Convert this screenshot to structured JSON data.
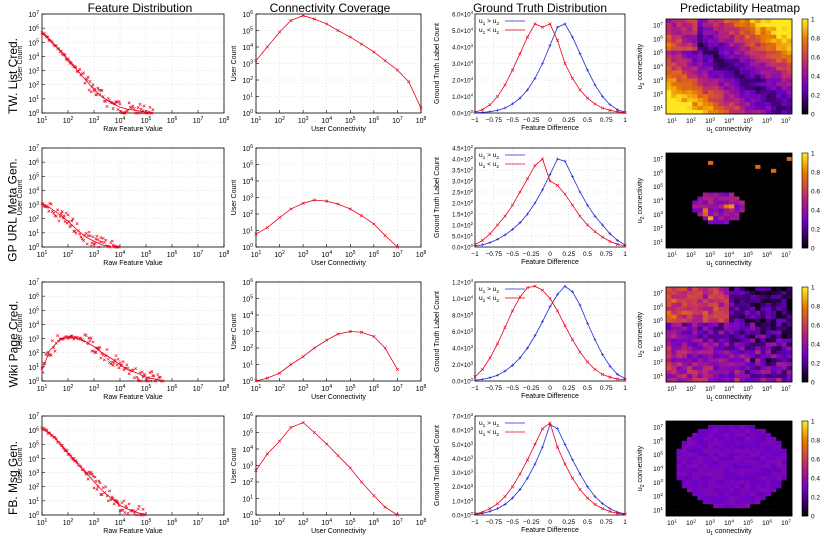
{
  "column_titles": [
    "Feature Distribution",
    "Connectivity Coverage",
    "Ground Truth Distribution",
    "Predictability Heatmap"
  ],
  "row_titles": [
    "TW. List Cred.",
    "GP URL Meta Gen.",
    "Wiki Page Cred.",
    "FB. Msg Gen."
  ],
  "colors": {
    "series": "#e8001c",
    "series_alt": "#1c2bd8",
    "grid": "#cccccc"
  },
  "colorbar": {
    "ticks": [
      "0",
      "0.2",
      "0.4",
      "0.6",
      "0.8",
      "1"
    ]
  },
  "chart_data": [
    {
      "panel": "feature-distribution-1",
      "type": "scatter",
      "xscale": "log",
      "yscale": "log",
      "xlabel": "Raw Feature Value",
      "ylabel": "User Count",
      "xlim": [
        10,
        100000000
      ],
      "ylim": [
        1,
        100000000
      ],
      "xtick_labels": [
        "10^1",
        "10^2",
        "10^3",
        "10^4",
        "10^5",
        "10^6",
        "10^7",
        "10^8"
      ],
      "ytick_labels": [
        "10^0",
        "10^1",
        "10^2",
        "10^3",
        "10^4",
        "10^5",
        "10^6",
        "10^7"
      ],
      "x": [
        10,
        20,
        50,
        100,
        200,
        500,
        1000,
        2000,
        5000,
        10000,
        20000,
        50000,
        100000,
        200000
      ],
      "y": [
        3000000,
        800000,
        100000,
        20000,
        4000,
        400,
        80,
        20,
        6,
        3,
        2,
        1.5,
        1.2,
        1
      ]
    },
    {
      "panel": "connectivity-coverage-1",
      "type": "line",
      "xscale": "log",
      "yscale": "log",
      "xlabel": "User Connectivity",
      "ylabel": "User Count",
      "xlim": [
        10,
        100000000
      ],
      "ylim": [
        1,
        1000000
      ],
      "xtick_labels": [
        "10^1",
        "10^2",
        "10^3",
        "10^4",
        "10^5",
        "10^6",
        "10^7",
        "10^8"
      ],
      "ytick_labels": [
        "10^0",
        "10^1",
        "10^2",
        "10^3",
        "10^4",
        "10^5",
        "10^6"
      ],
      "x": [
        10,
        30,
        100,
        300,
        1000,
        3000,
        10000,
        30000,
        100000,
        300000,
        1000000,
        3000000,
        10000000,
        30000000,
        100000000
      ],
      "y": [
        1500,
        10000,
        80000,
        400000,
        800000,
        500000,
        250000,
        100000,
        40000,
        15000,
        5000,
        1500,
        400,
        80,
        2
      ]
    },
    {
      "panel": "ground-truth-distribution-1",
      "type": "line",
      "xlabel": "Feature Difference",
      "ylabel": "Ground Truth Label Count",
      "xlim": [
        -1,
        1
      ],
      "ylim": [
        0,
        60000
      ],
      "xtick_labels": [
        "-1",
        "-0.75",
        "-0.5",
        "-0.25",
        "0",
        "0.25",
        "0.5",
        "0.75",
        "1"
      ],
      "ytick_labels": [
        "0.0x10^0",
        "1.0x10^4",
        "2.0x10^4",
        "3.0x10^4",
        "4.0x10^4",
        "5.0x10^4",
        "6.0x10^4"
      ],
      "legend": [
        "u1 > u2",
        "u1 < u2"
      ],
      "x": [
        -1,
        -0.9,
        -0.8,
        -0.7,
        -0.6,
        -0.5,
        -0.4,
        -0.3,
        -0.2,
        -0.1,
        0,
        0.1,
        0.2,
        0.3,
        0.4,
        0.5,
        0.6,
        0.7,
        0.8,
        0.9,
        1
      ],
      "series": [
        {
          "name": "u1 > u2",
          "values": [
            200,
            400,
            800,
            1600,
            3000,
            5500,
            9000,
            14000,
            21000,
            30000,
            41000,
            52000,
            54000,
            46000,
            36000,
            26000,
            17000,
            10000,
            5000,
            2000,
            500
          ]
        },
        {
          "name": "u1 < u2",
          "values": [
            500,
            2000,
            5000,
            10000,
            17000,
            26000,
            36000,
            46000,
            54000,
            52000,
            54000,
            44000,
            30000,
            21000,
            14000,
            9000,
            5500,
            3000,
            1600,
            800,
            200
          ]
        }
      ]
    },
    {
      "panel": "predictability-heatmap-1",
      "type": "heatmap",
      "xlabel": "u1 connectivity",
      "ylabel": "u2 connectivity",
      "xtick_labels": [
        "10^1",
        "10^2",
        "10^3",
        "10^4",
        "10^5",
        "10^6",
        "10^7"
      ],
      "ytick_labels": [
        "10^1",
        "10^2",
        "10^3",
        "10^4",
        "10^5",
        "10^6",
        "10^7"
      ],
      "pattern": "diagonal"
    },
    {
      "panel": "feature-distribution-2",
      "type": "scatter",
      "xscale": "log",
      "yscale": "log",
      "xlabel": "Raw Feature Value",
      "ylabel": "User Count",
      "xlim": [
        10,
        100000000
      ],
      "ylim": [
        1,
        100000000
      ],
      "xtick_labels": [
        "10^1",
        "10^2",
        "10^3",
        "10^4",
        "10^5",
        "10^6",
        "10^7",
        "10^8"
      ],
      "ytick_labels": [
        "10^0",
        "10^1",
        "10^2",
        "10^3",
        "10^4",
        "10^5",
        "10^6",
        "10^7"
      ],
      "x": [
        10,
        20,
        50,
        100,
        200,
        500,
        1000,
        2000,
        5000,
        10000
      ],
      "y": [
        3000,
        1500,
        400,
        120,
        30,
        6,
        3,
        1.5,
        1,
        1
      ]
    },
    {
      "panel": "connectivity-coverage-2",
      "type": "line",
      "xscale": "log",
      "yscale": "log",
      "xlabel": "User Connectivity",
      "ylabel": "User Count",
      "xlim": [
        10,
        100000000
      ],
      "ylim": [
        1,
        1000000
      ],
      "xtick_labels": [
        "10^1",
        "10^2",
        "10^3",
        "10^4",
        "10^5",
        "10^6",
        "10^7",
        "10^8"
      ],
      "ytick_labels": [
        "10^0",
        "10^1",
        "10^2",
        "10^3",
        "10^4",
        "10^5",
        "10^6"
      ],
      "x": [
        10,
        30,
        100,
        300,
        1000,
        3000,
        10000,
        30000,
        100000,
        300000,
        1000000,
        3000000,
        10000000
      ],
      "y": [
        6,
        15,
        60,
        200,
        450,
        700,
        600,
        400,
        200,
        80,
        25,
        5,
        1
      ]
    },
    {
      "panel": "ground-truth-distribution-2",
      "type": "line",
      "xlabel": "Feature Difference",
      "ylabel": "Ground Truth Label Count",
      "xlim": [
        -1,
        1
      ],
      "ylim": [
        0,
        450
      ],
      "xtick_labels": [
        "-1",
        "-0.75",
        "-0.5",
        "-0.25",
        "0",
        "0.25",
        "0.5",
        "0.75",
        "1"
      ],
      "ytick_labels": [
        "0.0x10^0",
        "5.0x10^1",
        "1.0x10^2",
        "1.5x10^2",
        "2.0x10^2",
        "2.5x10^2",
        "3.0x10^2",
        "3.5x10^2",
        "4.0x10^2",
        "4.5x10^2"
      ],
      "legend": [
        "u1 > u2",
        "u1 < u2"
      ],
      "x": [
        -1,
        -0.9,
        -0.8,
        -0.7,
        -0.6,
        -0.5,
        -0.4,
        -0.3,
        -0.2,
        -0.1,
        0,
        0.1,
        0.2,
        0.3,
        0.4,
        0.5,
        0.6,
        0.7,
        0.8,
        0.9,
        1
      ],
      "series": [
        {
          "name": "u1 > u2",
          "values": [
            5,
            10,
            20,
            35,
            55,
            80,
            110,
            150,
            200,
            260,
            330,
            400,
            390,
            320,
            250,
            190,
            140,
            100,
            60,
            30,
            10
          ]
        },
        {
          "name": "u1 < u2",
          "values": [
            10,
            30,
            60,
            100,
            140,
            190,
            250,
            310,
            370,
            400,
            300,
            280,
            240,
            190,
            140,
            100,
            70,
            45,
            25,
            12,
            5
          ]
        }
      ]
    },
    {
      "panel": "predictability-heatmap-2",
      "type": "heatmap",
      "xlabel": "u1 connectivity",
      "ylabel": "u2 connectivity",
      "xtick_labels": [
        "10^1",
        "10^2",
        "10^3",
        "10^4",
        "10^5",
        "10^6",
        "10^7"
      ],
      "ytick_labels": [
        "10^1",
        "10^2",
        "10^3",
        "10^4",
        "10^5",
        "10^6",
        "10^7"
      ],
      "pattern": "sparse"
    },
    {
      "panel": "feature-distribution-3",
      "type": "scatter",
      "xscale": "log",
      "yscale": "log",
      "xlabel": "Raw Feature Value",
      "ylabel": "User Count",
      "xlim": [
        10,
        100000000
      ],
      "ylim": [
        1,
        100000000
      ],
      "xtick_labels": [
        "10^1",
        "10^2",
        "10^3",
        "10^4",
        "10^5",
        "10^6",
        "10^7",
        "10^8"
      ],
      "ytick_labels": [
        "10^0",
        "10^1",
        "10^2",
        "10^3",
        "10^4",
        "10^5",
        "10^6",
        "10^7"
      ],
      "x": [
        10,
        20,
        50,
        100,
        200,
        500,
        1000,
        2000,
        5000,
        10000,
        20000,
        50000,
        100000,
        200000,
        500000
      ],
      "y": [
        8,
        300,
        2500,
        3500,
        3000,
        1500,
        600,
        200,
        60,
        20,
        8,
        4,
        2,
        1.5,
        1
      ]
    },
    {
      "panel": "connectivity-coverage-3",
      "type": "line",
      "xscale": "log",
      "yscale": "log",
      "xlabel": "User Connectivity",
      "ylabel": "User Count",
      "xlim": [
        10,
        100000000
      ],
      "ylim": [
        1,
        1000000
      ],
      "xtick_labels": [
        "10^1",
        "10^2",
        "10^3",
        "10^4",
        "10^5",
        "10^6",
        "10^7",
        "10^8"
      ],
      "ytick_labels": [
        "10^0",
        "10^1",
        "10^2",
        "10^3",
        "10^4",
        "10^5",
        "10^6"
      ],
      "x": [
        10,
        30,
        100,
        300,
        1000,
        3000,
        10000,
        30000,
        100000,
        300000,
        1000000,
        3000000,
        10000000
      ],
      "y": [
        1,
        1.5,
        3,
        10,
        30,
        100,
        300,
        700,
        1000,
        900,
        500,
        100,
        5
      ]
    },
    {
      "panel": "ground-truth-distribution-3",
      "type": "line",
      "xlabel": "Feature Difference",
      "ylabel": "Ground Truth Label Count",
      "xlim": [
        -1,
        1
      ],
      "ylim": [
        0,
        12000
      ],
      "xtick_labels": [
        "-1",
        "-0.75",
        "-0.5",
        "-0.25",
        "0",
        "0.25",
        "0.5",
        "0.75",
        "1"
      ],
      "ytick_labels": [
        "0.0x10^0",
        "2.0x10^3",
        "4.0x10^3",
        "6.0x10^3",
        "8.0x10^3",
        "1.0x10^4",
        "1.2x10^4"
      ],
      "legend": [
        "u1 > u2",
        "u1 < u2"
      ],
      "x": [
        -1,
        -0.9,
        -0.8,
        -0.7,
        -0.6,
        -0.5,
        -0.4,
        -0.3,
        -0.2,
        -0.1,
        0,
        0.1,
        0.2,
        0.3,
        0.4,
        0.5,
        0.6,
        0.7,
        0.8,
        0.9,
        1
      ],
      "series": [
        {
          "name": "u1 > u2",
          "values": [
            100,
            200,
            400,
            700,
            1200,
            1900,
            2800,
            4000,
            5500,
            7200,
            9000,
            10500,
            11500,
            10800,
            9200,
            7000,
            5000,
            3200,
            1800,
            800,
            300
          ]
        },
        {
          "name": "u1 < u2",
          "values": [
            500,
            1400,
            2800,
            4500,
            6500,
            8500,
            10200,
            11300,
            11500,
            11000,
            10000,
            8500,
            6700,
            5000,
            3500,
            2300,
            1400,
            800,
            450,
            250,
            120
          ]
        }
      ]
    },
    {
      "panel": "predictability-heatmap-3",
      "type": "heatmap",
      "xlabel": "u1 connectivity",
      "ylabel": "u2 connectivity",
      "xtick_labels": [
        "10^1",
        "10^2",
        "10^3",
        "10^4",
        "10^5",
        "10^6",
        "10^7"
      ],
      "ytick_labels": [
        "10^1",
        "10^2",
        "10^3",
        "10^4",
        "10^5",
        "10^6",
        "10^7"
      ],
      "pattern": "upper-left"
    },
    {
      "panel": "feature-distribution-4",
      "type": "scatter",
      "xscale": "log",
      "yscale": "log",
      "xlabel": "Raw Feature Value",
      "ylabel": "User Count",
      "xlim": [
        10,
        100000000
      ],
      "ylim": [
        1,
        100000000
      ],
      "xtick_labels": [
        "10^1",
        "10^2",
        "10^3",
        "10^4",
        "10^5",
        "10^6",
        "10^7",
        "10^8"
      ],
      "ytick_labels": [
        "10^0",
        "10^1",
        "10^2",
        "10^3",
        "10^4",
        "10^5",
        "10^6",
        "10^7"
      ],
      "x": [
        10,
        20,
        50,
        100,
        200,
        500,
        1000,
        2000,
        5000,
        10000,
        20000,
        50000,
        100000
      ],
      "y": [
        10000000,
        4000000,
        600000,
        100000,
        20000,
        2500,
        500,
        100,
        20,
        6,
        3,
        1.5,
        1
      ]
    },
    {
      "panel": "connectivity-coverage-4",
      "type": "line",
      "xscale": "log",
      "yscale": "log",
      "xlabel": "User Connectivity",
      "ylabel": "User Count",
      "xlim": [
        10,
        100000000
      ],
      "ylim": [
        1,
        1000000
      ],
      "xtick_labels": [
        "10^1",
        "10^2",
        "10^3",
        "10^4",
        "10^5",
        "10^6",
        "10^7",
        "10^8"
      ],
      "ytick_labels": [
        "10^0",
        "10^1",
        "10^2",
        "10^3",
        "10^4",
        "10^5",
        "10^6"
      ],
      "x": [
        10,
        30,
        100,
        300,
        1000,
        3000,
        10000,
        30000,
        100000,
        300000,
        1000000,
        3000000,
        10000000
      ],
      "y": [
        500,
        5000,
        30000,
        200000,
        400000,
        100000,
        20000,
        4000,
        700,
        100,
        15,
        3,
        1
      ]
    },
    {
      "panel": "ground-truth-distribution-4",
      "type": "line",
      "xlabel": "Feature Difference",
      "ylabel": "Ground Truth Label Count",
      "xlim": [
        -1,
        1
      ],
      "ylim": [
        0,
        7000
      ],
      "xtick_labels": [
        "-1",
        "-0.75",
        "-0.5",
        "-0.25",
        "0",
        "0.25",
        "0.5",
        "0.75",
        "1"
      ],
      "ytick_labels": [
        "0.0x10^0",
        "1.0x10^3",
        "2.0x10^3",
        "3.0x10^3",
        "4.0x10^3",
        "5.0x10^3",
        "6.0x10^3",
        "7.0x10^3"
      ],
      "legend": [
        "u1 > u2",
        "u1 < u2"
      ],
      "x": [
        -1,
        -0.9,
        -0.8,
        -0.7,
        -0.6,
        -0.5,
        -0.4,
        -0.3,
        -0.2,
        -0.1,
        0,
        0.1,
        0.2,
        0.3,
        0.4,
        0.5,
        0.6,
        0.7,
        0.8,
        0.9,
        1
      ],
      "series": [
        {
          "name": "u1 > u2",
          "values": [
            50,
            120,
            250,
            450,
            750,
            1200,
            1800,
            2600,
            3600,
            4800,
            6400,
            6100,
            5000,
            3900,
            2900,
            2000,
            1300,
            800,
            450,
            200,
            80
          ]
        },
        {
          "name": "u1 < u2",
          "values": [
            80,
            200,
            450,
            800,
            1300,
            2000,
            2900,
            3900,
            5000,
            6100,
            6500,
            4800,
            3600,
            2600,
            1800,
            1200,
            750,
            450,
            250,
            120,
            50
          ]
        }
      ]
    },
    {
      "panel": "predictability-heatmap-4",
      "type": "heatmap",
      "xlabel": "u1 connectivity",
      "ylabel": "u2 connectivity",
      "xtick_labels": [
        "10^1",
        "10^2",
        "10^3",
        "10^4",
        "10^5",
        "10^6",
        "10^7"
      ],
      "ytick_labels": [
        "10^1",
        "10^2",
        "10^3",
        "10^4",
        "10^5",
        "10^6",
        "10^7"
      ],
      "pattern": "blob"
    }
  ]
}
